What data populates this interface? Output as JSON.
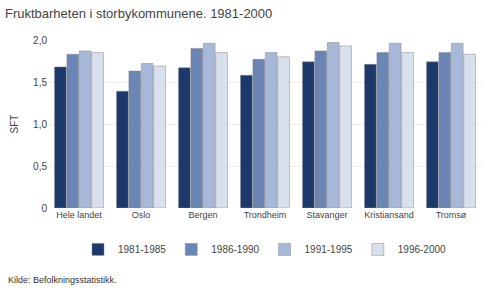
{
  "chart_data": {
    "type": "bar",
    "title": "Fruktbarheten i storbykommunene. 1981-2000",
    "ylabel": "SFT",
    "annotations": [
      "Kilde: Befolkningsstatistikk."
    ],
    "categories": [
      "Hele landet",
      "Oslo",
      "Bergen",
      "Trondheim",
      "Stavanger",
      "Kristiansand",
      "Tromsø"
    ],
    "series": [
      {
        "name": "1981-1985",
        "color": "#1b3a6b",
        "values": [
          1.68,
          1.39,
          1.67,
          1.58,
          1.74,
          1.71,
          1.74
        ]
      },
      {
        "name": "1986-1990",
        "color": "#6b85b5",
        "values": [
          1.83,
          1.63,
          1.9,
          1.77,
          1.87,
          1.85,
          1.85
        ]
      },
      {
        "name": "1991-1995",
        "color": "#a8b8d8",
        "values": [
          1.87,
          1.72,
          1.96,
          1.85,
          1.97,
          1.96,
          1.96
        ]
      },
      {
        "name": "1996-2000",
        "color": "#d8e0ee",
        "values": [
          1.85,
          1.69,
          1.85,
          1.8,
          1.93,
          1.85,
          1.83
        ]
      }
    ],
    "ylim": [
      0,
      2.0
    ],
    "yticks": [
      0,
      {
        "value": 0.5,
        "label": "0,5"
      },
      {
        "value": 1.0,
        "label": "1,0"
      },
      {
        "value": 1.5,
        "label": "1,5"
      },
      {
        "value": 2.0,
        "label": "2,0"
      }
    ],
    "grid": true,
    "legend": "bottom"
  }
}
